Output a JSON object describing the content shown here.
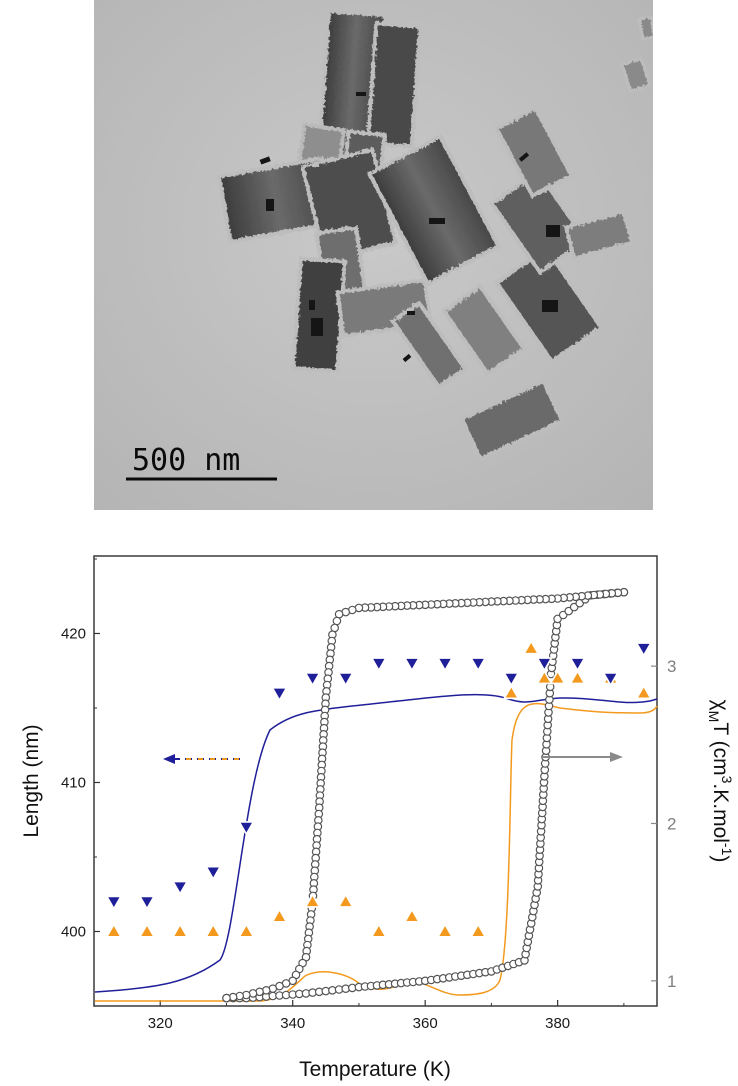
{
  "micrograph": {
    "scale_bar_label": "500 nm"
  },
  "chart_data": {
    "type": "scatter",
    "xlabel": "Temperature (K)",
    "ylabel_left": "Length (nm)",
    "ylabel_right_parts": [
      "χ",
      "M",
      "T (cm",
      "3",
      ".K.mol",
      "-1",
      ")"
    ],
    "xlim": [
      310,
      395
    ],
    "ylim_left": [
      395,
      425.2
    ],
    "ylim_right": [
      0.84,
      3.7
    ],
    "x_ticks": [
      320,
      340,
      360,
      380
    ],
    "y_left_ticks": [
      400,
      410,
      420
    ],
    "y_right_ticks": [
      1,
      2,
      3
    ],
    "series": [
      {
        "axis": "left",
        "marker": "triangle-down",
        "color": "#1f1f9a",
        "x": [
          313,
          318,
          323,
          328,
          333,
          338,
          343,
          348,
          353,
          358,
          363,
          368,
          373,
          378,
          383,
          388,
          393
        ],
        "y": [
          402,
          402,
          403,
          404,
          407,
          416,
          417,
          417,
          418,
          418,
          418,
          418,
          417,
          418,
          418,
          417,
          419
        ]
      },
      {
        "axis": "left",
        "marker": "triangle-up",
        "color": "#f39a1e",
        "x": [
          313,
          318,
          323,
          328,
          333,
          338,
          343,
          348,
          353,
          358,
          363,
          368,
          373,
          376,
          378,
          380,
          383,
          388,
          393
        ],
        "y": [
          400,
          400,
          400,
          400,
          400,
          401,
          402,
          402,
          400,
          401,
          400,
          400,
          416,
          419,
          417,
          417,
          417,
          417,
          416
        ]
      },
      {
        "axis": "right",
        "marker": "circle",
        "color": "#555555",
        "loop": "thermal hysteresis",
        "heating_x": [
          330,
          333,
          336,
          339,
          342,
          344,
          346,
          348,
          350,
          360,
          370,
          375,
          377,
          378,
          379,
          380,
          385,
          390
        ],
        "heating_y": [
          0.89,
          0.89,
          0.9,
          0.91,
          0.92,
          0.93,
          0.94,
          0.95,
          0.96,
          1.0,
          1.06,
          1.13,
          1.6,
          2.3,
          2.95,
          3.3,
          3.45,
          3.47
        ],
        "cooling_x": [
          390,
          380,
          370,
          360,
          350,
          347,
          346,
          345,
          344,
          343,
          342,
          340,
          337,
          333,
          330
        ],
        "cooling_y": [
          3.47,
          3.43,
          3.41,
          3.39,
          3.37,
          3.33,
          3.2,
          2.8,
          2.1,
          1.5,
          1.15,
          1.0,
          0.95,
          0.91,
          0.89
        ]
      }
    ]
  }
}
